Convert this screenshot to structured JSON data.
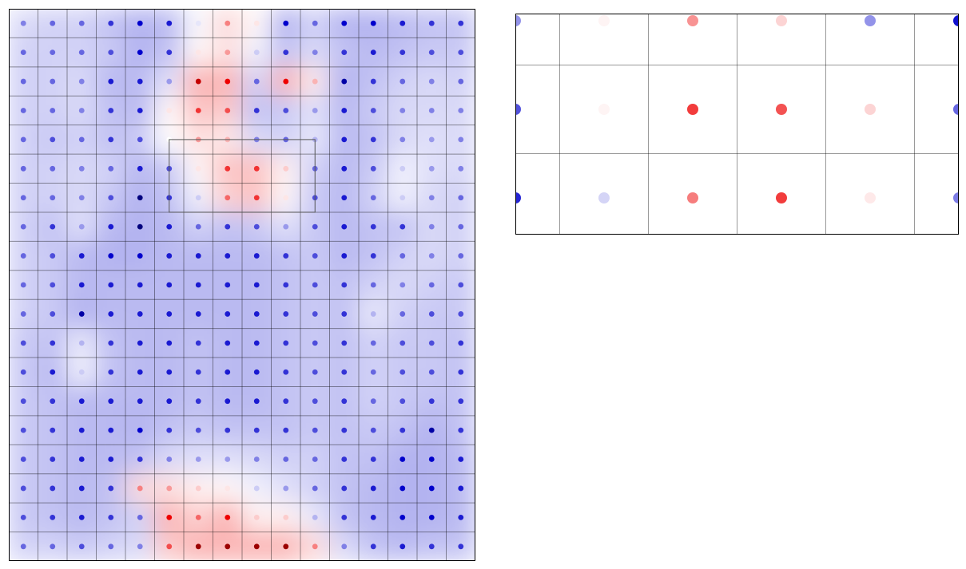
{
  "main_map": {
    "columns": 16,
    "rows": 19,
    "diverging_colormap": {
      "negative": "#0000cc",
      "neutral": "#ffffff",
      "positive": "#ee0000",
      "deep_negative": "#00006a",
      "deep_positive": "#880000"
    },
    "values": [
      [
        -0.5,
        -0.6,
        -0.6,
        -0.8,
        -1.0,
        -0.9,
        -0.1,
        0.5,
        0.1,
        -1.0,
        -0.6,
        -1.0,
        -1.0,
        -0.9,
        -0.8,
        -0.8
      ],
      [
        -0.6,
        -0.6,
        -0.6,
        -0.7,
        -1.0,
        -0.8,
        0.1,
        0.4,
        -0.2,
        -0.8,
        -0.5,
        -0.8,
        -0.9,
        -0.8,
        -0.7,
        -0.7
      ],
      [
        -0.6,
        -0.6,
        -0.5,
        -0.9,
        -0.9,
        -0.4,
        1.1,
        1.0,
        -0.6,
        1.0,
        0.3,
        -1.1,
        -0.8,
        -0.6,
        -0.5,
        -0.6
      ],
      [
        -0.6,
        -0.6,
        -0.5,
        -0.8,
        -0.9,
        0.1,
        0.8,
        0.7,
        -0.8,
        -0.7,
        -0.4,
        -0.9,
        -0.7,
        -0.5,
        -0.5,
        -0.5
      ],
      [
        -0.6,
        -0.7,
        -0.6,
        -0.8,
        -0.7,
        0.0,
        0.4,
        0.3,
        -0.5,
        -0.6,
        -0.3,
        -0.9,
        -0.8,
        -0.5,
        -0.4,
        -0.5
      ],
      [
        -0.6,
        -0.6,
        -0.5,
        -0.6,
        -0.9,
        -0.7,
        0.1,
        0.8,
        0.8,
        0.2,
        -0.6,
        -0.9,
        -0.7,
        -0.2,
        -0.4,
        -0.5
      ],
      [
        -0.6,
        -0.6,
        -0.5,
        -0.7,
        -1.2,
        -0.8,
        -0.2,
        0.6,
        0.8,
        0.1,
        -0.7,
        -0.9,
        -0.6,
        -0.2,
        -0.5,
        -0.6
      ],
      [
        -0.6,
        -0.8,
        -0.4,
        -0.9,
        -1.2,
        -0.9,
        -0.6,
        -0.8,
        -0.7,
        -0.4,
        -0.7,
        -0.9,
        -0.8,
        -0.8,
        -0.5,
        -0.6
      ],
      [
        -0.6,
        -0.7,
        -0.9,
        -1.0,
        -1.0,
        -0.9,
        -0.9,
        -0.9,
        -0.9,
        -0.8,
        -0.7,
        -0.9,
        -0.8,
        -0.6,
        -0.5,
        -0.6
      ],
      [
        -0.6,
        -0.7,
        -0.9,
        -0.9,
        -0.9,
        -0.9,
        -0.9,
        -0.9,
        -0.9,
        -0.8,
        -0.7,
        -0.8,
        -0.6,
        -0.5,
        -0.6,
        -0.7
      ],
      [
        -0.6,
        -0.7,
        -1.1,
        -0.9,
        -0.9,
        -0.9,
        -0.9,
        -0.9,
        -0.9,
        -0.8,
        -0.7,
        -0.8,
        -0.3,
        -0.6,
        -0.7,
        -0.7
      ],
      [
        -0.7,
        -0.8,
        -0.3,
        -0.8,
        -0.9,
        -0.9,
        -0.8,
        -0.9,
        -0.9,
        -0.8,
        -0.7,
        -0.8,
        -0.6,
        -0.7,
        -0.7,
        -0.8
      ],
      [
        -0.7,
        -0.9,
        -0.2,
        -0.8,
        -0.9,
        -0.9,
        -0.8,
        -0.9,
        -0.9,
        -0.8,
        -0.7,
        -0.8,
        -0.6,
        -0.7,
        -0.7,
        -0.8
      ],
      [
        -0.7,
        -0.8,
        -0.9,
        -0.9,
        -0.9,
        -0.9,
        -0.8,
        -0.9,
        -0.9,
        -0.8,
        -0.7,
        -0.8,
        -0.6,
        -0.7,
        -0.8,
        -0.8
      ],
      [
        -0.7,
        -0.8,
        -0.9,
        -0.9,
        -1.0,
        -0.8,
        -0.7,
        -0.8,
        -0.8,
        -0.8,
        -0.7,
        -0.8,
        -0.7,
        -0.8,
        -1.1,
        -0.8
      ],
      [
        -0.7,
        -0.8,
        -0.9,
        -0.9,
        -0.8,
        -0.5,
        -0.4,
        -0.4,
        -0.5,
        -0.6,
        -0.6,
        -0.8,
        -0.8,
        -1.0,
        -1.0,
        -0.9
      ],
      [
        -0.7,
        -0.8,
        -0.9,
        -0.8,
        0.5,
        0.4,
        0.2,
        0.1,
        -0.2,
        -0.4,
        -0.6,
        -0.8,
        -0.9,
        -1.0,
        -1.0,
        -0.9
      ],
      [
        -0.7,
        -0.8,
        -0.9,
        -0.8,
        -0.6,
        1.0,
        0.6,
        1.0,
        0.2,
        0.2,
        -0.3,
        -0.8,
        -0.9,
        -1.0,
        -1.0,
        -0.9
      ],
      [
        -0.6,
        -0.6,
        -0.7,
        -0.6,
        -0.5,
        0.7,
        1.2,
        1.2,
        1.2,
        1.2,
        0.5,
        -0.5,
        -0.8,
        -0.9,
        -0.8,
        -0.8
      ]
    ]
  },
  "zoom_map": {
    "highlight_box": {
      "col_start": 5.5,
      "col_end": 10.5,
      "row_start": 4.5,
      "row_end": 7.0
    },
    "columns": 6,
    "rows": 3,
    "values": [
      [
        -0.5,
        0.05,
        0.5,
        0.2,
        -0.5,
        -1.1
      ],
      [
        -0.8,
        0.05,
        0.9,
        0.8,
        0.2,
        -0.7
      ],
      [
        -1.0,
        -0.2,
        0.6,
        0.9,
        0.1,
        -0.6
      ]
    ]
  }
}
